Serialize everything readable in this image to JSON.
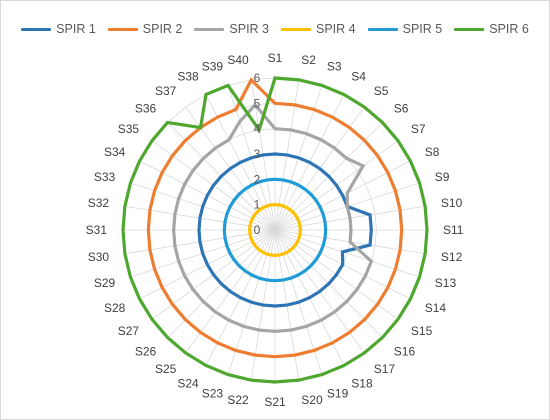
{
  "chart_data": {
    "type": "radar",
    "title": "",
    "legend_position": "top",
    "grid": true,
    "categories": [
      "S1",
      "S2",
      "S3",
      "S4",
      "S5",
      "S6",
      "S7",
      "S8",
      "S9",
      "S10",
      "S11",
      "S12",
      "S13",
      "S14",
      "S15",
      "S16",
      "S17",
      "S18",
      "S19",
      "S20",
      "S21",
      "S22",
      "S23",
      "S24",
      "S25",
      "S26",
      "S27",
      "S28",
      "S29",
      "S30",
      "S31",
      "S32",
      "S33",
      "S34",
      "S35",
      "S36",
      "S37",
      "S38",
      "S39",
      "S40"
    ],
    "radial_ticks": [
      "0",
      "1",
      "2",
      "3",
      "4",
      "5",
      "6"
    ],
    "rlim": [
      0,
      6
    ],
    "series": [
      {
        "name": "SPIR 1",
        "color": "#2E75B6",
        "values": [
          3,
          3,
          3,
          3,
          3,
          3,
          3,
          3,
          3,
          3.8,
          3.8,
          3.8,
          2.8,
          3,
          3,
          3,
          3,
          3,
          3,
          3,
          3,
          3,
          3,
          3,
          3,
          3,
          3,
          3,
          3,
          3,
          3,
          3,
          3,
          3,
          3,
          3,
          3,
          3,
          3,
          3
        ]
      },
      {
        "name": "SPIR 2",
        "color": "#ED7D31",
        "values": [
          5,
          5,
          5,
          5,
          5,
          5,
          5,
          5,
          5,
          5,
          5,
          5,
          5,
          5,
          5,
          5,
          5,
          5,
          5,
          5,
          5,
          5,
          5,
          5,
          5,
          5,
          5,
          5,
          5,
          5,
          5,
          5,
          5,
          5,
          5,
          5,
          5,
          5,
          5,
          6
        ]
      },
      {
        "name": "SPIR 3",
        "color": "#A5A5A5",
        "values": [
          4,
          4,
          4,
          4,
          4,
          4,
          4.3,
          3.2,
          3,
          3,
          3,
          3,
          4,
          4,
          4,
          4,
          4,
          4,
          4,
          4,
          4,
          4,
          4,
          4,
          4,
          4,
          4,
          4,
          4,
          4,
          4,
          4,
          4,
          4,
          4,
          4,
          4,
          4,
          4.5,
          5
        ]
      },
      {
        "name": "SPIR 4",
        "color": "#FFC000",
        "values": [
          1,
          1,
          1,
          1,
          1,
          1,
          1,
          1,
          1,
          1,
          1,
          1,
          1,
          1,
          1,
          1,
          1,
          1,
          1,
          1,
          1,
          1,
          1,
          1,
          1,
          1,
          1,
          1,
          1,
          1,
          1,
          1,
          1,
          1,
          1,
          1,
          1,
          1,
          1,
          1
        ]
      },
      {
        "name": "SPIR 5",
        "color": "#1F9BD7",
        "values": [
          2,
          2,
          2,
          2,
          2,
          2,
          2,
          2,
          2,
          2,
          2,
          2,
          2,
          2,
          2,
          2,
          2,
          2,
          2,
          2,
          2,
          2,
          2,
          2,
          2,
          2,
          2,
          2,
          2,
          2,
          2,
          2,
          2,
          2,
          2,
          2,
          2,
          2,
          2,
          2
        ]
      },
      {
        "name": "SPIR 6",
        "color": "#4EA72E",
        "values": [
          6,
          6,
          6,
          6,
          6,
          6,
          6,
          6,
          6,
          6,
          6,
          6,
          6,
          6,
          6,
          6,
          6,
          6,
          6,
          6,
          6,
          6,
          6,
          6,
          6,
          6,
          6,
          6,
          6,
          6,
          6,
          6,
          6,
          6,
          6,
          6,
          5,
          6,
          6,
          4
        ]
      }
    ]
  }
}
